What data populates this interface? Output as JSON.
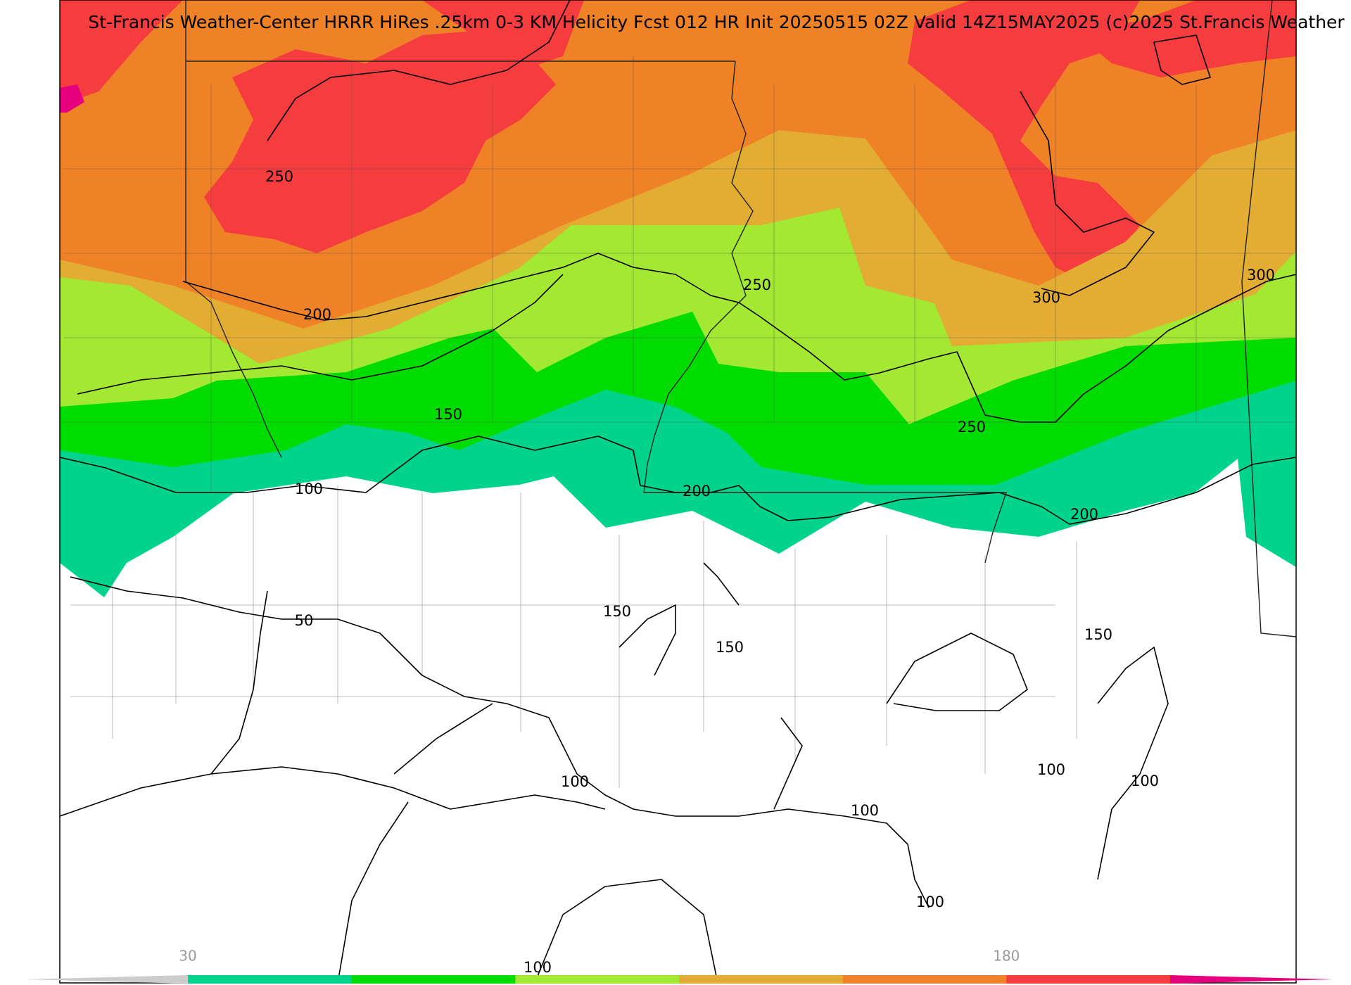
{
  "header": {
    "title": "St-Francis Weather-Center HRRR HiRes .25km 0-3 KM Helicity Fcst 012 HR Init 20250515 02Z  Valid 14Z15MAY2025    (c)2025 St.Francis Weather"
  },
  "contour_labels": [
    250,
    200,
    250,
    150,
    100,
    200,
    250,
    300,
    300,
    200,
    50,
    150,
    150,
    150,
    100,
    100,
    100,
    100,
    100,
    100
  ],
  "colorbar": {
    "labels": [
      30,
      180
    ],
    "colors": [
      "#00d48c",
      "#00dc00",
      "#a3e833",
      "#e3ac33",
      "#ef8127",
      "#f53c3f",
      "#e6007e"
    ]
  }
}
